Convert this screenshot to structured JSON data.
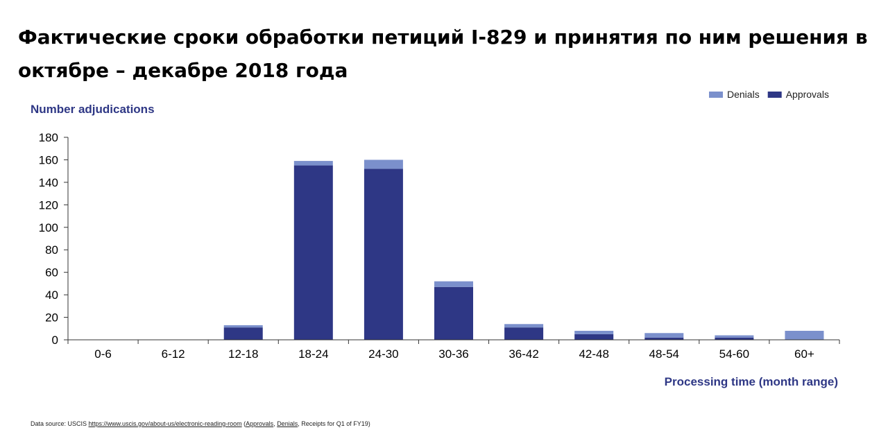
{
  "title": "Фактические сроки обработки петиций I-829 и принятия по ним решения в октябре – декабре 2018 года",
  "source": {
    "prefix": "Data source: USCIS ",
    "url": "https://www.uscis.gov/about-us/electronic-reading-room",
    "open": " (",
    "approvals": "Approvals",
    "sep": ", ",
    "denials": "Denials",
    "suffix": ", Receipts for Q1 of FY19)"
  },
  "colors": {
    "approvals": "#2e3785",
    "denials": "#7b90cc",
    "axis_label": "#2e3785",
    "axis_line": "#333333",
    "text": "#000000"
  },
  "chart_data": {
    "type": "bar",
    "stacked": true,
    "ylabel": "Number adjudications",
    "xlabel": "Processing time (month range)",
    "ylim": [
      0,
      180
    ],
    "yticks": [
      0,
      20,
      40,
      60,
      80,
      100,
      120,
      140,
      160,
      180
    ],
    "grid": false,
    "legend_position": "top-right",
    "categories": [
      "0-6",
      "6-12",
      "12-18",
      "18-24",
      "24-30",
      "30-36",
      "36-42",
      "42-48",
      "48-54",
      "54-60",
      "60+"
    ],
    "series": [
      {
        "name": "Approvals",
        "color": "#2e3785",
        "values": [
          0,
          0,
          11,
          155,
          152,
          47,
          11,
          5,
          2,
          2,
          0
        ]
      },
      {
        "name": "Denials",
        "color": "#7b90cc",
        "values": [
          0,
          0,
          2,
          4,
          8,
          5,
          3,
          3,
          4,
          2,
          8
        ]
      }
    ],
    "legend_order": [
      "Denials",
      "Approvals"
    ]
  }
}
